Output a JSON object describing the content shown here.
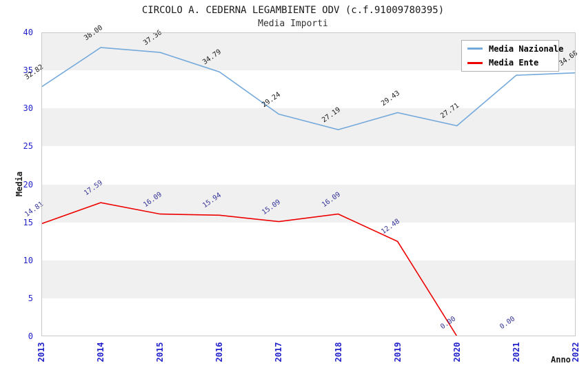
{
  "chart": {
    "title": "CIRCOLO A. CEDERNA LEGAMBIENTE ODV (c.f.91009780395)",
    "subtitle": "Media Importi",
    "y_axis_title": "Media",
    "x_axis_title": "Anno",
    "legend": [
      {
        "label": "Media Nazionale",
        "color": "#74a9dc"
      },
      {
        "label": "Media Ente",
        "color": "#ee0000"
      }
    ]
  },
  "chart_data": {
    "type": "line",
    "title": "CIRCOLO A. CEDERNA LEGAMBIENTE ODV (c.f.91009780395)",
    "subtitle": "Media Importi",
    "xlabel": "Anno",
    "ylabel": "Media",
    "x": [
      2013,
      2014,
      2015,
      2016,
      2017,
      2018,
      2019,
      2020,
      2021,
      2022
    ],
    "x_tick_labels": [
      "2013",
      "2014",
      "2015",
      "2016",
      "2017",
      "2018",
      "2019",
      "2020",
      "2021",
      "2022"
    ],
    "yticks": [
      0,
      5,
      10,
      15,
      20,
      25,
      30,
      35,
      40
    ],
    "ylim": [
      0,
      40
    ],
    "legend_position": "top-right",
    "grid": "horizontal-bands",
    "band_colors": [
      "#f0f0f0",
      "#ffffff"
    ],
    "tick_color": "#2222cc",
    "series": [
      {
        "name": "Media Nazionale",
        "color": "#74a9dc",
        "label_color": "#1a1a1a",
        "values": [
          32.82,
          38.0,
          37.36,
          34.79,
          29.24,
          27.19,
          29.43,
          27.71,
          34.36,
          34.68
        ],
        "point_labels": [
          "32.82",
          "38.00",
          "37.36",
          "34.79",
          "29.24",
          "27.19",
          "29.43",
          "27.71",
          "34.36",
          "34.68"
        ]
      },
      {
        "name": "Media Ente",
        "color": "#ee0000",
        "label_color": "#333399",
        "values": [
          14.81,
          17.59,
          16.09,
          15.94,
          15.09,
          16.09,
          12.48,
          0.0,
          0.0,
          null
        ],
        "point_labels": [
          "14.81",
          "17.59",
          "16.09",
          "15.94",
          "15.09",
          "16.09",
          "12.48",
          "0.00",
          "0.00",
          ""
        ]
      }
    ]
  }
}
